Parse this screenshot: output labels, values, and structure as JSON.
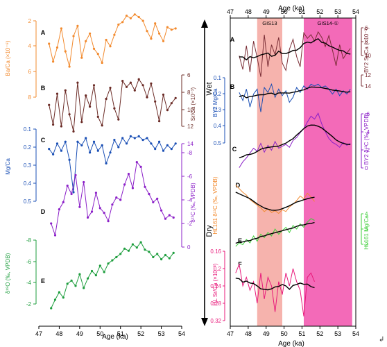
{
  "figure": {
    "trailing_mark": "↲",
    "direction_axis": {
      "top_label": "Wet",
      "bottom_label": "Dry"
    }
  },
  "left_panel": {
    "x_axis": {
      "label": "Age (ka)",
      "ticks": [
        47,
        48,
        49,
        50,
        51,
        52,
        53,
        54
      ],
      "range": [
        47,
        54
      ]
    },
    "panels": [
      {
        "letter": "A",
        "axis_label": "Ba/Ca (×10⁻⁶)",
        "ticks": [
          2,
          4,
          6,
          8
        ],
        "color": "#f28a2e",
        "side": "left"
      },
      {
        "letter": "B",
        "axis_label": "Sr/Ca (×10⁻³)",
        "ticks": [
          6,
          8,
          10,
          12
        ],
        "color": "#6b2b26",
        "side": "right"
      },
      {
        "letter": "C",
        "axis_label": "Mg/Ca",
        "ticks": [
          0.1,
          0.2,
          0.3,
          0.4,
          0.5
        ],
        "color": "#1a4fb5",
        "side": "left"
      },
      {
        "letter": "D",
        "axis_label": "δ¹³C (‰, VPDB)",
        "ticks": [
          14,
          -8,
          -6,
          -4,
          -2,
          0
        ],
        "color": "#8b1fc8",
        "side": "right"
      },
      {
        "letter": "E",
        "axis_label": "δ¹⁸O (‰, VPDB)",
        "ticks": [
          -8,
          -6,
          -4,
          -2
        ],
        "color": "#1e9e3e",
        "side": "left"
      }
    ]
  },
  "right_panel": {
    "x_axis": {
      "label": "Age (ka)",
      "ticks": [
        47,
        48,
        49,
        50,
        51,
        52,
        53,
        54
      ],
      "range": [
        47,
        54
      ]
    },
    "events": [
      {
        "label": "GIS13",
        "start": 48.5,
        "end": 49.9,
        "color": "#f6b3ad"
      },
      {
        "label": "GIS14-①",
        "start": 51.1,
        "end": 53.8,
        "color": "#f36ab8"
      }
    ],
    "panels": [
      {
        "letter": "A",
        "axis_label": "BY2 Sr/Ca (×10⁻³)",
        "ticks": [
          6,
          8,
          10
        ],
        "color": "#7a2d35",
        "side": "right"
      },
      {
        "letter": "B",
        "axis_label": "BY2 Mg/Ca",
        "ticks": [
          0.1,
          0.2,
          0.3,
          0.4,
          0.5
        ],
        "color": "#1a4fb5",
        "side": "left"
      },
      {
        "letter": "B",
        "axis_label": "",
        "ticks": [
          12,
          14
        ],
        "color": "#7a2d35",
        "side": "right"
      },
      {
        "letter": "C",
        "axis_label": "BY2 δ¹³C (‰, VPDB)",
        "ticks": [
          -6,
          -4,
          -2,
          0
        ],
        "color": "#8b1fc8",
        "side": "right"
      },
      {
        "letter": "D",
        "axis_label": "HL161 δ¹³C (‰, VPDB)",
        "ticks": [],
        "color": "#f28a2e",
        "side": "left"
      },
      {
        "letter": "E",
        "axis_label": "HL161 Mg/Ca",
        "ticks": [
          4,
          3,
          2
        ],
        "color": "#3fcf3a",
        "side": "right"
      },
      {
        "letter": "F",
        "axis_label": "HL Sr/Ca (×10⁻³)",
        "ticks": [
          0.16,
          0.2,
          0.24,
          0.28,
          0.32
        ],
        "color": "#e8197a",
        "side": "left"
      }
    ]
  },
  "chart_data": [
    {
      "type": "line",
      "title": "",
      "xlabel": "Age (ka)",
      "xlim": [
        47,
        54
      ],
      "series": [
        {
          "name": "Ba/Ca",
          "color": "#f28a2e",
          "x": [
            47.5,
            47.7,
            47.9,
            48.1,
            48.3,
            48.5,
            48.7,
            48.9,
            49.1,
            49.3,
            49.5,
            49.7,
            49.9,
            50.1,
            50.3,
            50.5,
            50.7,
            50.9,
            51.1,
            51.3,
            51.5,
            51.7,
            51.9,
            52.1,
            52.3,
            52.5,
            52.7,
            52.9,
            53.1,
            53.3,
            53.5,
            53.7
          ],
          "y": [
            3.8,
            5.2,
            4.1,
            2.6,
            4.4,
            5.6,
            3.2,
            2.4,
            4.9,
            3.6,
            3.0,
            4.2,
            4.6,
            5.3,
            3.5,
            4.0,
            3.1,
            2.3,
            2.1,
            1.6,
            1.8,
            1.5,
            1.7,
            2.0,
            2.8,
            3.4,
            2.2,
            3.0,
            3.6,
            2.5,
            2.7,
            2.6
          ]
        },
        {
          "name": "Sr/Ca",
          "color": "#6b2b26",
          "x": [
            47.5,
            47.7,
            47.9,
            48.1,
            48.3,
            48.5,
            48.7,
            48.9,
            49.1,
            49.3,
            49.5,
            49.7,
            49.9,
            50.1,
            50.3,
            50.5,
            50.7,
            50.9,
            51.1,
            51.3,
            51.5,
            51.7,
            51.9,
            52.1,
            52.3,
            52.5,
            52.7,
            52.9,
            53.1,
            53.3,
            53.5,
            53.7
          ],
          "y": [
            9.5,
            11.8,
            8.2,
            12.0,
            7.8,
            10.6,
            12.6,
            6.9,
            11.5,
            8.4,
            9.7,
            7.2,
            10.9,
            11.9,
            8.8,
            7.5,
            9.9,
            11.2,
            6.7,
            7.4,
            6.9,
            7.8,
            6.5,
            7.2,
            8.6,
            7.0,
            9.1,
            11.4,
            8.3,
            10.1,
            9.3,
            8.7
          ]
        },
        {
          "name": "Mg/Ca",
          "color": "#1a4fb5",
          "x": [
            47.5,
            47.7,
            47.9,
            48.1,
            48.3,
            48.5,
            48.7,
            48.9,
            49.1,
            49.3,
            49.5,
            49.7,
            49.9,
            50.1,
            50.3,
            50.5,
            50.7,
            50.9,
            51.1,
            51.3,
            51.5,
            51.7,
            51.9,
            52.1,
            52.3,
            52.5,
            52.7,
            52.9,
            53.1,
            53.3,
            53.5,
            53.7
          ],
          "y": [
            0.21,
            0.24,
            0.18,
            0.22,
            0.17,
            0.27,
            0.45,
            0.17,
            0.19,
            0.15,
            0.23,
            0.17,
            0.22,
            0.19,
            0.29,
            0.23,
            0.16,
            0.2,
            0.15,
            0.18,
            0.14,
            0.15,
            0.14,
            0.16,
            0.15,
            0.18,
            0.21,
            0.17,
            0.22,
            0.19,
            0.21,
            0.18
          ]
        },
        {
          "name": "δ¹³C",
          "color": "#8b1fc8",
          "x": [
            47.6,
            47.8,
            48.0,
            48.2,
            48.4,
            48.6,
            48.8,
            49.0,
            49.2,
            49.4,
            49.6,
            49.8,
            50.0,
            50.2,
            50.4,
            50.6,
            50.8,
            51.0,
            51.2,
            51.4,
            51.6,
            51.8,
            52.0,
            52.2,
            52.4,
            52.6,
            52.8,
            53.0,
            53.2,
            53.4,
            53.6
          ],
          "y": [
            -2.0,
            -1.0,
            -3.2,
            -3.8,
            -5.2,
            -4.5,
            -6.1,
            -3.4,
            -5.5,
            -2.5,
            -3.0,
            -4.6,
            -3.3,
            -2.9,
            -2.2,
            -3.6,
            -4.2,
            -4.0,
            -5.3,
            -6.2,
            -5.0,
            -7.2,
            -6.8,
            -5.1,
            -4.5,
            -3.8,
            -4.1,
            -3.1,
            -2.4,
            -2.7,
            -2.5
          ]
        },
        {
          "name": "δ¹⁸O",
          "color": "#1e9e3e",
          "x": [
            47.6,
            47.8,
            48.0,
            48.2,
            48.4,
            48.6,
            48.8,
            49.0,
            49.2,
            49.4,
            49.6,
            49.8,
            50.0,
            50.2,
            50.4,
            50.6,
            50.8,
            51.0,
            51.2,
            51.4,
            51.6,
            51.8,
            52.0,
            52.2,
            52.4,
            52.6,
            52.8,
            53.0,
            53.2,
            53.4,
            53.6
          ],
          "y": [
            -1.6,
            -2.4,
            -3.1,
            -2.6,
            -3.9,
            -4.2,
            -3.7,
            -4.8,
            -3.5,
            -4.4,
            -5.1,
            -4.7,
            -5.6,
            -5.0,
            -5.8,
            -6.1,
            -6.4,
            -6.7,
            -7.2,
            -7.0,
            -7.6,
            -7.3,
            -7.8,
            -7.1,
            -6.9,
            -6.4,
            -6.7,
            -6.2,
            -6.6,
            -6.3,
            -6.8
          ]
        }
      ]
    },
    {
      "type": "line",
      "title": "",
      "xlabel": "Age (ka)",
      "xlim": [
        47,
        54
      ],
      "series": [
        {
          "name": "BY2 Sr/Ca",
          "color": "#7a2d35",
          "x": [
            47.5,
            47.7,
            47.9,
            48.1,
            48.3,
            48.5,
            48.7,
            48.9,
            49.1,
            49.3,
            49.5,
            49.7,
            49.9,
            50.1,
            50.3,
            50.5,
            50.7,
            50.9,
            51.1,
            51.3,
            51.5,
            51.7,
            51.9,
            52.1,
            52.3,
            52.5,
            52.7,
            52.9,
            53.1,
            53.3,
            53.5,
            53.7
          ],
          "y": [
            8.6,
            10.1,
            7.5,
            10.4,
            7.0,
            8.8,
            10.9,
            6.3,
            9.8,
            7.4,
            8.5,
            6.6,
            9.4,
            10.2,
            7.9,
            6.8,
            8.7,
            9.8,
            6.1,
            6.7,
            6.3,
            7.0,
            6.0,
            6.6,
            7.6,
            6.4,
            8.0,
            9.7,
            7.4,
            8.9,
            8.3,
            7.8
          ]
        },
        {
          "name": "BY2 Mg/Ca",
          "color": "#1a4fb5",
          "x": [
            47.5,
            47.7,
            47.9,
            48.1,
            48.3,
            48.5,
            48.7,
            48.9,
            49.1,
            49.3,
            49.5,
            49.7,
            49.9,
            50.1,
            50.3,
            50.5,
            50.7,
            50.9,
            51.1,
            51.3,
            51.5,
            51.7,
            51.9,
            52.1,
            52.3,
            52.5,
            52.7,
            52.9,
            53.1,
            53.3,
            53.5,
            53.7
          ],
          "y": [
            0.19,
            0.24,
            0.17,
            0.28,
            0.2,
            0.17,
            0.31,
            0.16,
            0.19,
            0.14,
            0.22,
            0.17,
            0.21,
            0.18,
            0.25,
            0.22,
            0.16,
            0.19,
            0.15,
            0.17,
            0.14,
            0.15,
            0.14,
            0.16,
            0.15,
            0.17,
            0.2,
            0.17,
            0.21,
            0.18,
            0.2,
            0.17
          ]
        },
        {
          "name": "BY2 δ¹³C",
          "color": "#8b1fc8",
          "x": [
            47.5,
            47.7,
            47.9,
            48.1,
            48.3,
            48.5,
            48.7,
            48.9,
            49.1,
            49.3,
            49.5,
            49.7,
            49.9,
            50.1,
            50.3,
            50.5,
            50.7,
            50.9,
            51.1,
            51.3,
            51.5,
            51.7,
            51.9,
            52.1,
            52.3,
            52.5,
            52.7,
            52.9,
            53.1,
            53.3,
            53.5,
            53.7
          ],
          "y": [
            -0.6,
            -1.2,
            -1.6,
            -2.1,
            -2.6,
            -2.3,
            -3.1,
            -2.2,
            -2.9,
            -2.4,
            -3.3,
            -2.6,
            -2.8,
            -3.0,
            -2.7,
            -3.4,
            -3.7,
            -4.2,
            -4.6,
            -5.3,
            -5.9,
            -5.6,
            -6.2,
            -5.1,
            -4.3,
            -3.6,
            -3.2,
            -3.0,
            -2.7,
            -3.2,
            -2.9,
            -3.1
          ]
        },
        {
          "name": "HL161 δ¹³C",
          "color": "#f28a2e",
          "x": [
            47.3,
            47.5,
            47.7,
            47.9,
            48.1,
            48.3,
            48.5,
            48.7,
            48.9,
            49.1,
            49.3,
            49.5,
            49.7,
            49.9,
            50.1,
            50.3,
            50.5,
            50.7,
            50.9,
            51.1,
            51.3,
            51.5,
            51.7
          ],
          "y": [
            -5.2,
            -4.8,
            -4.4,
            -4.1,
            -3.6,
            -3.3,
            -3.0,
            -2.7,
            -2.3,
            -2.6,
            -2.2,
            -2.4,
            -2.1,
            -2.5,
            -2.3,
            -2.8,
            -3.1,
            -3.5,
            -4.0,
            -3.7,
            -4.3,
            -3.9,
            -3.4
          ]
        },
        {
          "name": "HL161 Mg/Ca",
          "color": "#3fcf3a",
          "x": [
            47.3,
            47.5,
            47.7,
            47.9,
            48.1,
            48.3,
            48.5,
            48.7,
            48.9,
            49.1,
            49.3,
            49.5,
            49.7,
            49.9,
            50.1,
            50.3,
            50.5,
            50.7,
            50.9,
            51.1,
            51.3,
            51.5,
            51.7
          ],
          "y": [
            2.0,
            2.2,
            2.1,
            2.4,
            2.2,
            2.6,
            2.3,
            2.7,
            2.5,
            2.8,
            2.6,
            3.0,
            2.7,
            2.9,
            3.1,
            2.8,
            3.2,
            3.0,
            3.3,
            3.1,
            3.4,
            3.6,
            3.5
          ]
        },
        {
          "name": "HL Sr/Ca",
          "color": "#e8197a",
          "x": [
            47.3,
            47.5,
            47.7,
            47.9,
            48.1,
            48.3,
            48.5,
            48.7,
            48.9,
            49.1,
            49.3,
            49.5,
            49.7,
            49.9,
            50.1,
            50.3,
            50.5,
            50.7,
            50.9,
            51.1,
            51.3,
            51.5,
            51.7
          ],
          "y": [
            0.21,
            0.19,
            0.24,
            0.22,
            0.25,
            0.23,
            0.28,
            0.21,
            0.27,
            0.22,
            0.24,
            0.3,
            0.23,
            0.26,
            0.21,
            0.24,
            0.2,
            0.23,
            0.25,
            0.31,
            0.22,
            0.21,
            0.23
          ]
        }
      ]
    }
  ]
}
